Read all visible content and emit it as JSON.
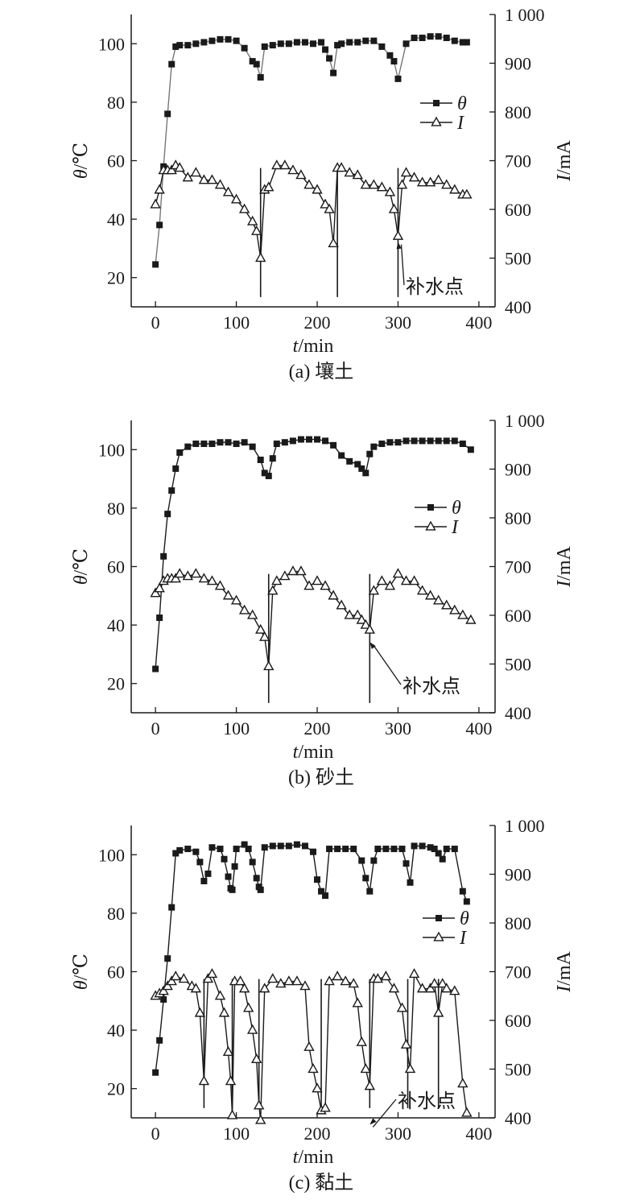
{
  "chart_data": [
    {
      "type": "line",
      "caption": "(a) 壤土",
      "xlabel": {
        "italic": "t",
        "rest": "/min"
      },
      "ylabel_left": {
        "italic": "θ",
        "rest": "/℃"
      },
      "ylabel_right": {
        "italic": "I",
        "rest": "/mA"
      },
      "xlim": [
        -30,
        420
      ],
      "ylim_left": [
        10,
        110
      ],
      "ylim_right": [
        400,
        1000
      ],
      "x_ticks": [
        0,
        100,
        200,
        300,
        400
      ],
      "x_tick_labels": [
        "0",
        "100",
        "200",
        "300",
        "400"
      ],
      "y_left_ticks": [
        20,
        40,
        60,
        80,
        100
      ],
      "y_left_tick_labels": [
        "20",
        "40",
        "60",
        "80",
        "100"
      ],
      "y_right_ticks": [
        400,
        500,
        600,
        700,
        800,
        900,
        1000
      ],
      "y_right_tick_labels": [
        "400",
        "500",
        "600",
        "700",
        "800",
        "900",
        "1 000"
      ],
      "legend": {
        "theta": "θ",
        "current": "I"
      },
      "series": [
        {
          "name": "θ",
          "axis": "left",
          "marker": "square",
          "color": "#1a1a1a",
          "line_color": "#777777",
          "x": [
            0,
            5,
            10,
            15,
            20,
            25,
            30,
            40,
            50,
            60,
            70,
            80,
            90,
            100,
            110,
            120,
            125,
            130,
            135,
            145,
            155,
            165,
            175,
            185,
            195,
            205,
            210,
            215,
            220,
            225,
            230,
            240,
            250,
            260,
            270,
            280,
            290,
            295,
            300,
            310,
            320,
            330,
            340,
            350,
            360,
            370,
            380,
            385
          ],
          "y": [
            24.5,
            38,
            58,
            76,
            93,
            99,
            99.5,
            99.5,
            100,
            100.5,
            101,
            101.5,
            101.5,
            101,
            98.5,
            94,
            93,
            88.5,
            99,
            99.5,
            100,
            100,
            100.5,
            100.5,
            100,
            100.5,
            98,
            95,
            90,
            99.5,
            100,
            100.5,
            100.5,
            101,
            101,
            99,
            96,
            94,
            88,
            100,
            102,
            102,
            102.5,
            102.5,
            102,
            101,
            100.5,
            100.5
          ]
        },
        {
          "name": "I",
          "axis": "right",
          "marker": "triangle-open",
          "color": "#1a1a1a",
          "line_color": "#1a1a1a",
          "x": [
            0,
            5,
            10,
            15,
            20,
            25,
            30,
            40,
            50,
            60,
            70,
            80,
            90,
            100,
            110,
            120,
            125,
            130,
            135,
            140,
            150,
            160,
            170,
            180,
            190,
            200,
            210,
            215,
            220,
            225,
            230,
            240,
            250,
            260,
            270,
            280,
            290,
            295,
            300,
            305,
            310,
            320,
            330,
            340,
            350,
            360,
            370,
            380,
            385
          ],
          "y": [
            610,
            640,
            680,
            680,
            680,
            690,
            685,
            665,
            675,
            660,
            660,
            650,
            635,
            620,
            600,
            575,
            555,
            500,
            640,
            645,
            690,
            690,
            680,
            670,
            650,
            640,
            610,
            600,
            530,
            685,
            685,
            675,
            670,
            650,
            650,
            645,
            635,
            600,
            545,
            650,
            675,
            665,
            655,
            655,
            660,
            650,
            640,
            630,
            630
          ]
        }
      ],
      "refill_x": [
        130,
        225,
        300
      ],
      "annotation": "补水点"
    },
    {
      "type": "line",
      "caption": "(b) 砂土",
      "xlabel": {
        "italic": "t",
        "rest": "/min"
      },
      "ylabel_left": {
        "italic": "θ",
        "rest": "/℃"
      },
      "ylabel_right": {
        "italic": "I",
        "rest": "/mA"
      },
      "xlim": [
        -30,
        420
      ],
      "ylim_left": [
        10,
        110
      ],
      "ylim_right": [
        400,
        1000
      ],
      "x_ticks": [
        0,
        100,
        200,
        300,
        400
      ],
      "x_tick_labels": [
        "0",
        "100",
        "200",
        "300",
        "400"
      ],
      "y_left_ticks": [
        20,
        40,
        60,
        80,
        100
      ],
      "y_left_tick_labels": [
        "20",
        "40",
        "60",
        "80",
        "100"
      ],
      "y_right_ticks": [
        400,
        500,
        600,
        700,
        800,
        900,
        1000
      ],
      "y_right_tick_labels": [
        "400",
        "500",
        "600",
        "700",
        "800",
        "900",
        "1 000"
      ],
      "legend": {
        "theta": "θ",
        "current": "I"
      },
      "series": [
        {
          "name": "θ",
          "axis": "left",
          "marker": "square",
          "color": "#1a1a1a",
          "line_color": "#1a1a1a",
          "x": [
            0,
            5,
            10,
            15,
            20,
            25,
            30,
            40,
            50,
            60,
            70,
            80,
            90,
            100,
            110,
            120,
            130,
            135,
            140,
            145,
            150,
            160,
            170,
            180,
            190,
            200,
            210,
            220,
            230,
            240,
            250,
            255,
            260,
            265,
            270,
            280,
            290,
            300,
            310,
            320,
            330,
            340,
            350,
            360,
            370,
            380,
            390
          ],
          "y": [
            25,
            42.5,
            63.5,
            78,
            86,
            93.5,
            99,
            101,
            102,
            102,
            102,
            102.5,
            102.5,
            102,
            102.5,
            101,
            96.5,
            92,
            91,
            97,
            102,
            102.5,
            103,
            103.5,
            103.5,
            103.5,
            103,
            101.5,
            98,
            96,
            95,
            93.5,
            92,
            98.5,
            101,
            102,
            102.5,
            102.5,
            103,
            103,
            103,
            103,
            103,
            103,
            103,
            102,
            100
          ]
        },
        {
          "name": "I",
          "axis": "right",
          "marker": "triangle-open",
          "color": "#1a1a1a",
          "line_color": "#1a1a1a",
          "x": [
            0,
            5,
            10,
            15,
            20,
            25,
            30,
            40,
            50,
            60,
            70,
            80,
            90,
            100,
            110,
            120,
            130,
            135,
            140,
            145,
            150,
            160,
            170,
            180,
            190,
            200,
            210,
            220,
            230,
            240,
            250,
            255,
            260,
            265,
            270,
            280,
            290,
            300,
            310,
            320,
            330,
            340,
            350,
            360,
            370,
            380,
            390
          ],
          "y": [
            645,
            655,
            670,
            675,
            675,
            675,
            685,
            680,
            685,
            675,
            670,
            660,
            640,
            630,
            610,
            600,
            570,
            555,
            495,
            650,
            670,
            680,
            690,
            690,
            660,
            670,
            660,
            640,
            620,
            600,
            600,
            590,
            580,
            570,
            650,
            670,
            660,
            685,
            670,
            670,
            650,
            640,
            630,
            620,
            610,
            600,
            590
          ]
        }
      ],
      "refill_x": [
        140,
        265
      ],
      "annotation": "补水点"
    },
    {
      "type": "line",
      "caption": "(c) 黏土",
      "xlabel": {
        "italic": "t",
        "rest": "/min"
      },
      "ylabel_left": {
        "italic": "θ",
        "rest": "/℃"
      },
      "ylabel_right": {
        "italic": "I",
        "rest": "/mA"
      },
      "xlim": [
        -30,
        420
      ],
      "ylim_left": [
        10,
        110
      ],
      "ylim_right": [
        400,
        1000
      ],
      "x_ticks": [
        0,
        100,
        200,
        300,
        400
      ],
      "x_tick_labels": [
        "0",
        "100",
        "200",
        "300",
        "400"
      ],
      "y_left_ticks": [
        20,
        40,
        60,
        80,
        100
      ],
      "y_left_tick_labels": [
        "20",
        "40",
        "60",
        "80",
        "100"
      ],
      "y_right_ticks": [
        400,
        500,
        600,
        700,
        800,
        900,
        1000
      ],
      "y_right_tick_labels": [
        "400",
        "500",
        "600",
        "700",
        "800",
        "900",
        "1 000"
      ],
      "legend": {
        "theta": "θ",
        "current": "I"
      },
      "series": [
        {
          "name": "θ",
          "axis": "left",
          "marker": "square",
          "color": "#1a1a1a",
          "line_color": "#1a1a1a",
          "x": [
            0,
            5,
            10,
            15,
            20,
            25,
            30,
            40,
            50,
            55,
            60,
            65,
            70,
            80,
            85,
            90,
            93,
            95,
            98,
            100,
            110,
            115,
            120,
            125,
            128,
            130,
            135,
            145,
            155,
            165,
            175,
            185,
            195,
            200,
            205,
            210,
            215,
            225,
            235,
            245,
            255,
            260,
            265,
            270,
            275,
            285,
            295,
            305,
            310,
            315,
            320,
            330,
            340,
            345,
            350,
            355,
            360,
            370,
            380,
            385
          ],
          "y": [
            25.5,
            36.5,
            50.5,
            64.5,
            82,
            100.5,
            101.5,
            102,
            101,
            97.5,
            91,
            93.5,
            102.5,
            102,
            98.5,
            92.5,
            88.5,
            88,
            96,
            102,
            103.5,
            102,
            97.5,
            92,
            89,
            88,
            102.5,
            103,
            103,
            103,
            103.5,
            103,
            101,
            91.5,
            87.5,
            86,
            102,
            102,
            102,
            102,
            98,
            92,
            87.5,
            98,
            102,
            102,
            102,
            102,
            97,
            90.5,
            103,
            103,
            102.5,
            102,
            100.5,
            98.5,
            102,
            102,
            87.5,
            84
          ]
        },
        {
          "name": "I",
          "axis": "right",
          "marker": "triangle-open",
          "color": "#1a1a1a",
          "line_color": "#1a1a1a",
          "x": [
            0,
            5,
            10,
            15,
            20,
            25,
            35,
            45,
            50,
            55,
            60,
            65,
            70,
            80,
            85,
            90,
            93,
            95,
            98,
            105,
            110,
            115,
            120,
            125,
            128,
            130,
            135,
            145,
            155,
            165,
            175,
            185,
            190,
            195,
            200,
            205,
            210,
            215,
            225,
            235,
            245,
            250,
            255,
            260,
            265,
            270,
            275,
            285,
            295,
            305,
            310,
            315,
            320,
            330,
            340,
            345,
            350,
            355,
            360,
            370,
            380,
            385
          ],
          "y": [
            650,
            655,
            660,
            670,
            680,
            690,
            685,
            670,
            665,
            615,
            475,
            685,
            695,
            650,
            615,
            535,
            475,
            405,
            680,
            680,
            665,
            625,
            580,
            520,
            425,
            395,
            665,
            685,
            675,
            680,
            680,
            670,
            545,
            500,
            460,
            415,
            420,
            680,
            690,
            680,
            675,
            635,
            555,
            500,
            465,
            685,
            685,
            690,
            665,
            625,
            550,
            500,
            695,
            665,
            665,
            675,
            615,
            675,
            665,
            660,
            470,
            410
          ]
        }
      ],
      "refill_x": [
        60,
        95,
        128,
        205,
        265,
        312,
        350
      ],
      "annotation": "补水点"
    }
  ]
}
